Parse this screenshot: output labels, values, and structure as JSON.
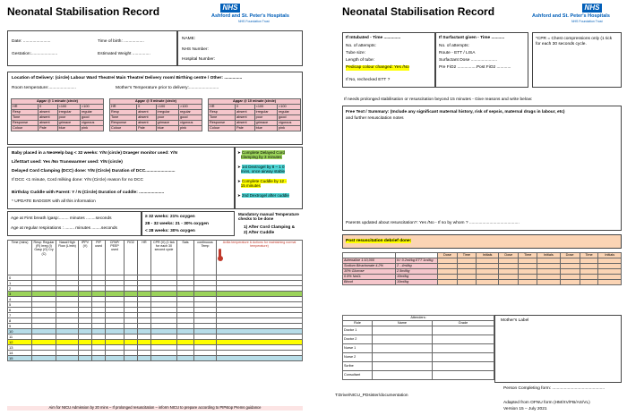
{
  "trust": {
    "badge": "NHS",
    "name": "Ashford and St. Peter's Hospitals",
    "sub": "NHS Foundation Trust"
  },
  "page1": {
    "title": "Neonatal Stabilisation Record",
    "date": "Date: .......................",
    "time_of_birth": "Time of birth: .................",
    "gestation": "Gestation:......................",
    "est_weight": "Estimated Weight ...............",
    "name": "NAME:",
    "nhs": "NHS Number:",
    "hosp": "Hospital Number:",
    "delivery": "Location of Delivery: (circle)  Labour Ward Theatre/ Main Theatre/ Delivery room/ Birthing centre / Other: ...............",
    "room_temp": "Room temperature:.......................",
    "mother_temp": "Mother's Temperature prior to delivery:.........................",
    "apgar": [
      {
        "head": "Apgar @ 1 minute (circle)",
        "rows": [
          [
            "HR",
            "0",
            "<100",
            ">100"
          ],
          [
            "Resp",
            "absent",
            "irregular",
            "regular"
          ],
          [
            "Tone",
            "absent",
            "poor",
            "good"
          ],
          [
            "Response",
            "absent",
            "grimace",
            "vigorous"
          ],
          [
            "Colour",
            "Pale",
            "blue",
            "pink"
          ]
        ]
      },
      {
        "head": "Apgar @ 5 minute (circle)",
        "rows": [
          [
            "HR",
            "0",
            "<100",
            ">100"
          ],
          [
            "Resp",
            "absent",
            "irregular",
            "regular"
          ],
          [
            "Tone",
            "absent",
            "poor",
            "good"
          ],
          [
            "Response",
            "absent",
            "grimace",
            "vigorous"
          ],
          [
            "Colour",
            "Pale",
            "blue",
            "pink"
          ]
        ]
      },
      {
        "head": "Apgar @ 10 minute (circle)",
        "rows": [
          [
            "HR",
            "0",
            "<100",
            ">100"
          ],
          [
            "Resp",
            "absent",
            "irregular",
            "regular"
          ],
          [
            "Tone",
            "absent",
            "poor",
            "good"
          ],
          [
            "Response",
            "absent",
            "grimace",
            "vigorous"
          ],
          [
            "Colour",
            "Pale",
            "blue",
            "pink"
          ]
        ]
      }
    ],
    "neohelp": "Baby placed in a NeoHelp bag < 32 weeks: Y/N (circle) Draeger monitor used:  Y/N",
    "lifestart": "LifeStart used: Yes /No   Transwarmer used: Y/N (circle)",
    "cord": "Delayed Cord Clamping (DCC) done: Y/N (Circle) Duration of DCC.........................",
    "cord2": "If DCC <1 minute, Cord milking done: Y/N (Circle)  reason for no DCC",
    "cuddle": "Birthday Cuddle with Parent:  Y / N (Circle)  Duration of cuddle: .....................",
    "badger": "* UPDATE BADGER with all this information",
    "bullets": [
      {
        "a": "Complete Delayed Cord",
        "b": "Clamping by 3 minutes",
        "c": "g"
      },
      {
        "a": "1st Dextrogel by 8 – 1 0",
        "b": "mins, once airway stable",
        "c": "c"
      },
      {
        "a": "Complete Cuddle by  12 -",
        "b": "15 minutes",
        "c": "y"
      },
      {
        "a": "2nd Dextrogel after cuddle",
        "b": "",
        "c": "c"
      }
    ],
    "first_breath": "Age at First breath /gasp:........ minutes ........seconds",
    "regular_resp": "Age at regular respirations : ........ minutes ........seconds",
    "oxygen": [
      "≥ 32 weeks: 21% oxygen",
      "28 - 32 weeks: 21 - 30% oxygen",
      "< 28 weeks: 30% oxygen"
    ],
    "temp_checks_title": "Mandatory manual Temperature checks to be done",
    "temp_checks": [
      "1) After Cord Clamping &",
      "2) After Cuddle"
    ],
    "sheet_headers": [
      "Time (mins)",
      "Resp: Regular (R) Irreg (I) Gasp (G) Cry (C)",
      "Nasal High Flow (L/min)",
      "IPPV (V)",
      "PIP used",
      "CPAP/ PEEP used",
      "FiO2",
      "HR",
      "CPR (V) (1 tick for each 30 second cycle",
      "Sats",
      "continuous Temp",
      "Axilla temperature & Actions for maintaining normal temperature)"
    ],
    "rows": [
      "0",
      "1",
      "2",
      "3",
      "4",
      "5",
      "6",
      "7",
      "8",
      "9",
      "10",
      "11",
      "12",
      "13",
      "14",
      "15"
    ],
    "footer": "Aim for  NICU Admission by 20 mins – If prolonged resuscitation – inform NICU to prepare according to PIPstop Prems guidance"
  },
  "page2": {
    "title": "Neonatal Stabilisation Record",
    "intubated": [
      "If Intubated  -  Time ..............",
      "No. of attempts:",
      "Tube size:",
      "Length of tube:",
      "Pedicap colour changed: Yes /No",
      "",
      "If No, rechecked ETT ?"
    ],
    "surfactant": [
      "If Surfactant given - Time ...........",
      "No. of attempts:",
      "Route - ETT / LISA",
      "Surfactant Dose ......................",
      "Pre  FiO2 ................Post FiO2 ............"
    ],
    "cpr_note": "*CPR = Chest compressions only (1 tick for each 30 seconds cycle.",
    "prolonged": "If needs prolonged stabilisation or resuscitation beyond 15 minutes - Give reasons and write below:",
    "free_text1": "Free Text / Summary: (Include any significant maternal history, risk of sepsis, maternal drugs in labour, etc)",
    "free_text2": "and further resuscitation notes",
    "parents": "Parents updated about resuscitation?: Yes /No  - If so by whom ? ..........................................",
    "debrief": "Post resuscitation debrief done:",
    "drug_headers": [
      "Dose",
      "Time",
      "Initials",
      "Dose",
      "Time",
      "Initials",
      "Dose",
      "Time",
      "Initials"
    ],
    "drugs": [
      [
        "Adrenaline 1:10,000",
        "IV: 0.2ml/kg  ETT 1ml/kg"
      ],
      [
        "Sodium Bicarbonate 4.2%",
        "2 - 4ml/kg"
      ],
      [
        "10% Glucose",
        "2.5ml/kg"
      ],
      [
        "0.9% NaCL",
        "10ml/kg"
      ],
      [
        "Blood",
        "10ml/kg"
      ]
    ],
    "attenders_title": "Attenders:",
    "attenders_headers": [
      "Role",
      "Name",
      "Grade"
    ],
    "roles": [
      "Doctor 1",
      "Doctor 2",
      "Nurse 1",
      "Nurse 2",
      "Scribe",
      "Consultant"
    ],
    "mothers_label": "Mother's Label",
    "person": "Person Completing form: ............................................",
    "path": "T:Drive/NICU_PDsister/documentation",
    "adapted": "Adapted from  OFNU form (HM/XV/FB/AS/VL)",
    "version": "Version 15 – July 2021"
  }
}
